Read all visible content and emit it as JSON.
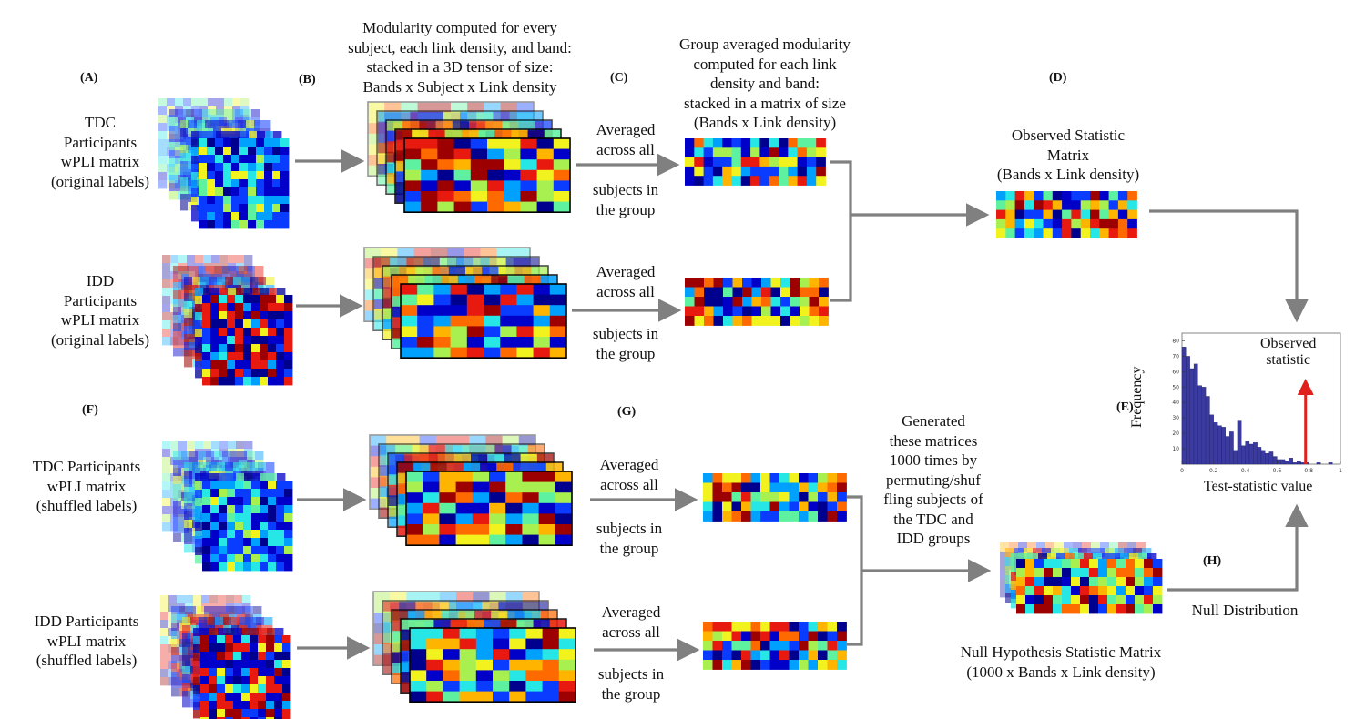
{
  "panel_tags": {
    "a": "(A)",
    "b": "(B)",
    "c": "(C)",
    "d": "(D)",
    "e": "(E)",
    "f": "(F)",
    "g": "(G)",
    "h": "(H)"
  },
  "labels": {
    "tdc_orig": [
      "TDC",
      "Participants",
      "wPLI matrix",
      "(original labels)"
    ],
    "idd_orig": [
      "IDD",
      "Participants",
      "wPLI matrix",
      "(original labels)"
    ],
    "tdc_shuf": [
      "TDC Participants",
      "wPLI matrix",
      "(shuffled labels)"
    ],
    "idd_shuf": [
      "IDD Participants",
      "wPLI matrix",
      "(shuffled labels)"
    ],
    "modularity_header": [
      "Modularity computed for every",
      "subject, each link density, and band:",
      "stacked in a 3D tensor of size:",
      "Bands x Subject x Link density"
    ],
    "group_header": [
      "Group averaged modularity",
      "computed for each link",
      "density and band:",
      "stacked in a matrix of size",
      "(Bands x Link density)"
    ],
    "avg_top": [
      "Averaged",
      "across all"
    ],
    "avg_bottom": [
      "subjects in",
      "the group"
    ],
    "observed_matrix": [
      "Observed Statistic",
      "Matrix",
      "(Bands x Link density)"
    ],
    "generated": [
      "Generated",
      "these matrices",
      "1000 times by",
      "permuting/shuf",
      "fling subjects of",
      "the TDC and",
      "IDD groups"
    ],
    "null_hyp": [
      "Null Hypothesis Statistic Matrix",
      "(1000 x Bands x Link density)"
    ],
    "null_distribution": "Null Distribution"
  },
  "chart_data": {
    "type": "bar",
    "xlabel": "Test-statistic value",
    "ylabel": "Frequency",
    "annotation": [
      "Observed",
      "statistic"
    ],
    "x_ticks": [
      "0",
      "0.2",
      "0.4",
      "0.6",
      "0.8",
      "1"
    ],
    "y_ticks": [
      "80",
      "70",
      "60",
      "50",
      "40",
      "30",
      "20",
      "10"
    ],
    "xlim": [
      0,
      1
    ],
    "ylim": [
      0,
      85
    ],
    "values": [
      76,
      70,
      62,
      65,
      51,
      50,
      44,
      32,
      27,
      25,
      24,
      18,
      21,
      9,
      28,
      12,
      15,
      13,
      14,
      11,
      9,
      7,
      8,
      5,
      3,
      3,
      2,
      4,
      1,
      2,
      1,
      1,
      0,
      0,
      1,
      0,
      0,
      1,
      0,
      0
    ],
    "observed_value": 0.78,
    "bar_color": "#3a3aa0",
    "marker_color": "#e0201c"
  },
  "colors": {
    "arrow": "#808080",
    "colormap": [
      "#00008f",
      "#0000c8",
      "#0a3cff",
      "#00a0ff",
      "#27e6e6",
      "#5ef2a0",
      "#a8f050",
      "#f2f21e",
      "#ffb400",
      "#ff6a00",
      "#e81a10",
      "#9c0000"
    ]
  }
}
